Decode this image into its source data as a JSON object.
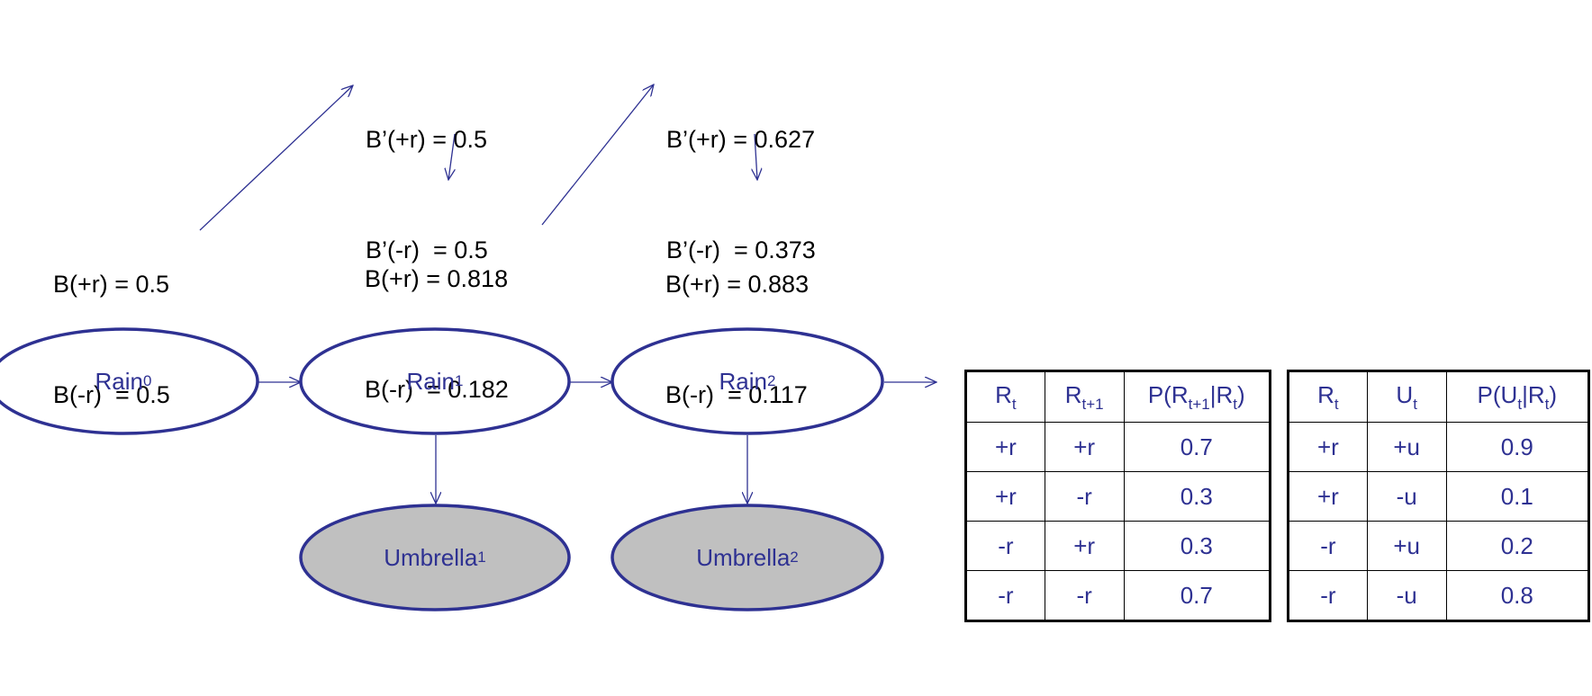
{
  "beliefs": {
    "b0": {
      "plus": "B(+r) = 0.5",
      "minus": "B(-r)  = 0.5"
    },
    "bp1": {
      "plus": "B’(+r) = 0.5",
      "minus": "B’(-r)  = 0.5"
    },
    "b1": {
      "plus": "B(+r) = 0.818",
      "minus": "B(-r)  = 0.182"
    },
    "bp2": {
      "plus": "B’(+r) = 0.627",
      "minus": "B’(-r)  = 0.373"
    },
    "b2": {
      "plus": "B(+r) = 0.883",
      "minus": "B(-r)  = 0.117"
    }
  },
  "nodes": {
    "rain0": {
      "base": "Rain",
      "sub": "0"
    },
    "rain1": {
      "base": "Rain",
      "sub": "1"
    },
    "rain2": {
      "base": "Rain",
      "sub": "2"
    },
    "umbrella1": {
      "base": "Umbrella",
      "sub": "1"
    },
    "umbrella2": {
      "base": "Umbrella",
      "sub": "2"
    }
  },
  "colors": {
    "node_stroke": "#2e3192",
    "node_text": "#2e3192",
    "observed_fill": "#c0c0c0",
    "arrow": "#2e3192"
  },
  "transition_table": {
    "rows": [
      [
        "+r",
        "+r",
        "0.7"
      ],
      [
        "+r",
        "-r",
        "0.3"
      ],
      [
        "-r",
        "+r",
        "0.3"
      ],
      [
        "-r",
        "-r",
        "0.7"
      ]
    ]
  },
  "emission_table": {
    "rows": [
      [
        "+r",
        "+u",
        "0.9"
      ],
      [
        "+r",
        "-u",
        "0.1"
      ],
      [
        "-r",
        "+u",
        "0.2"
      ],
      [
        "-r",
        "-u",
        "0.8"
      ]
    ]
  }
}
